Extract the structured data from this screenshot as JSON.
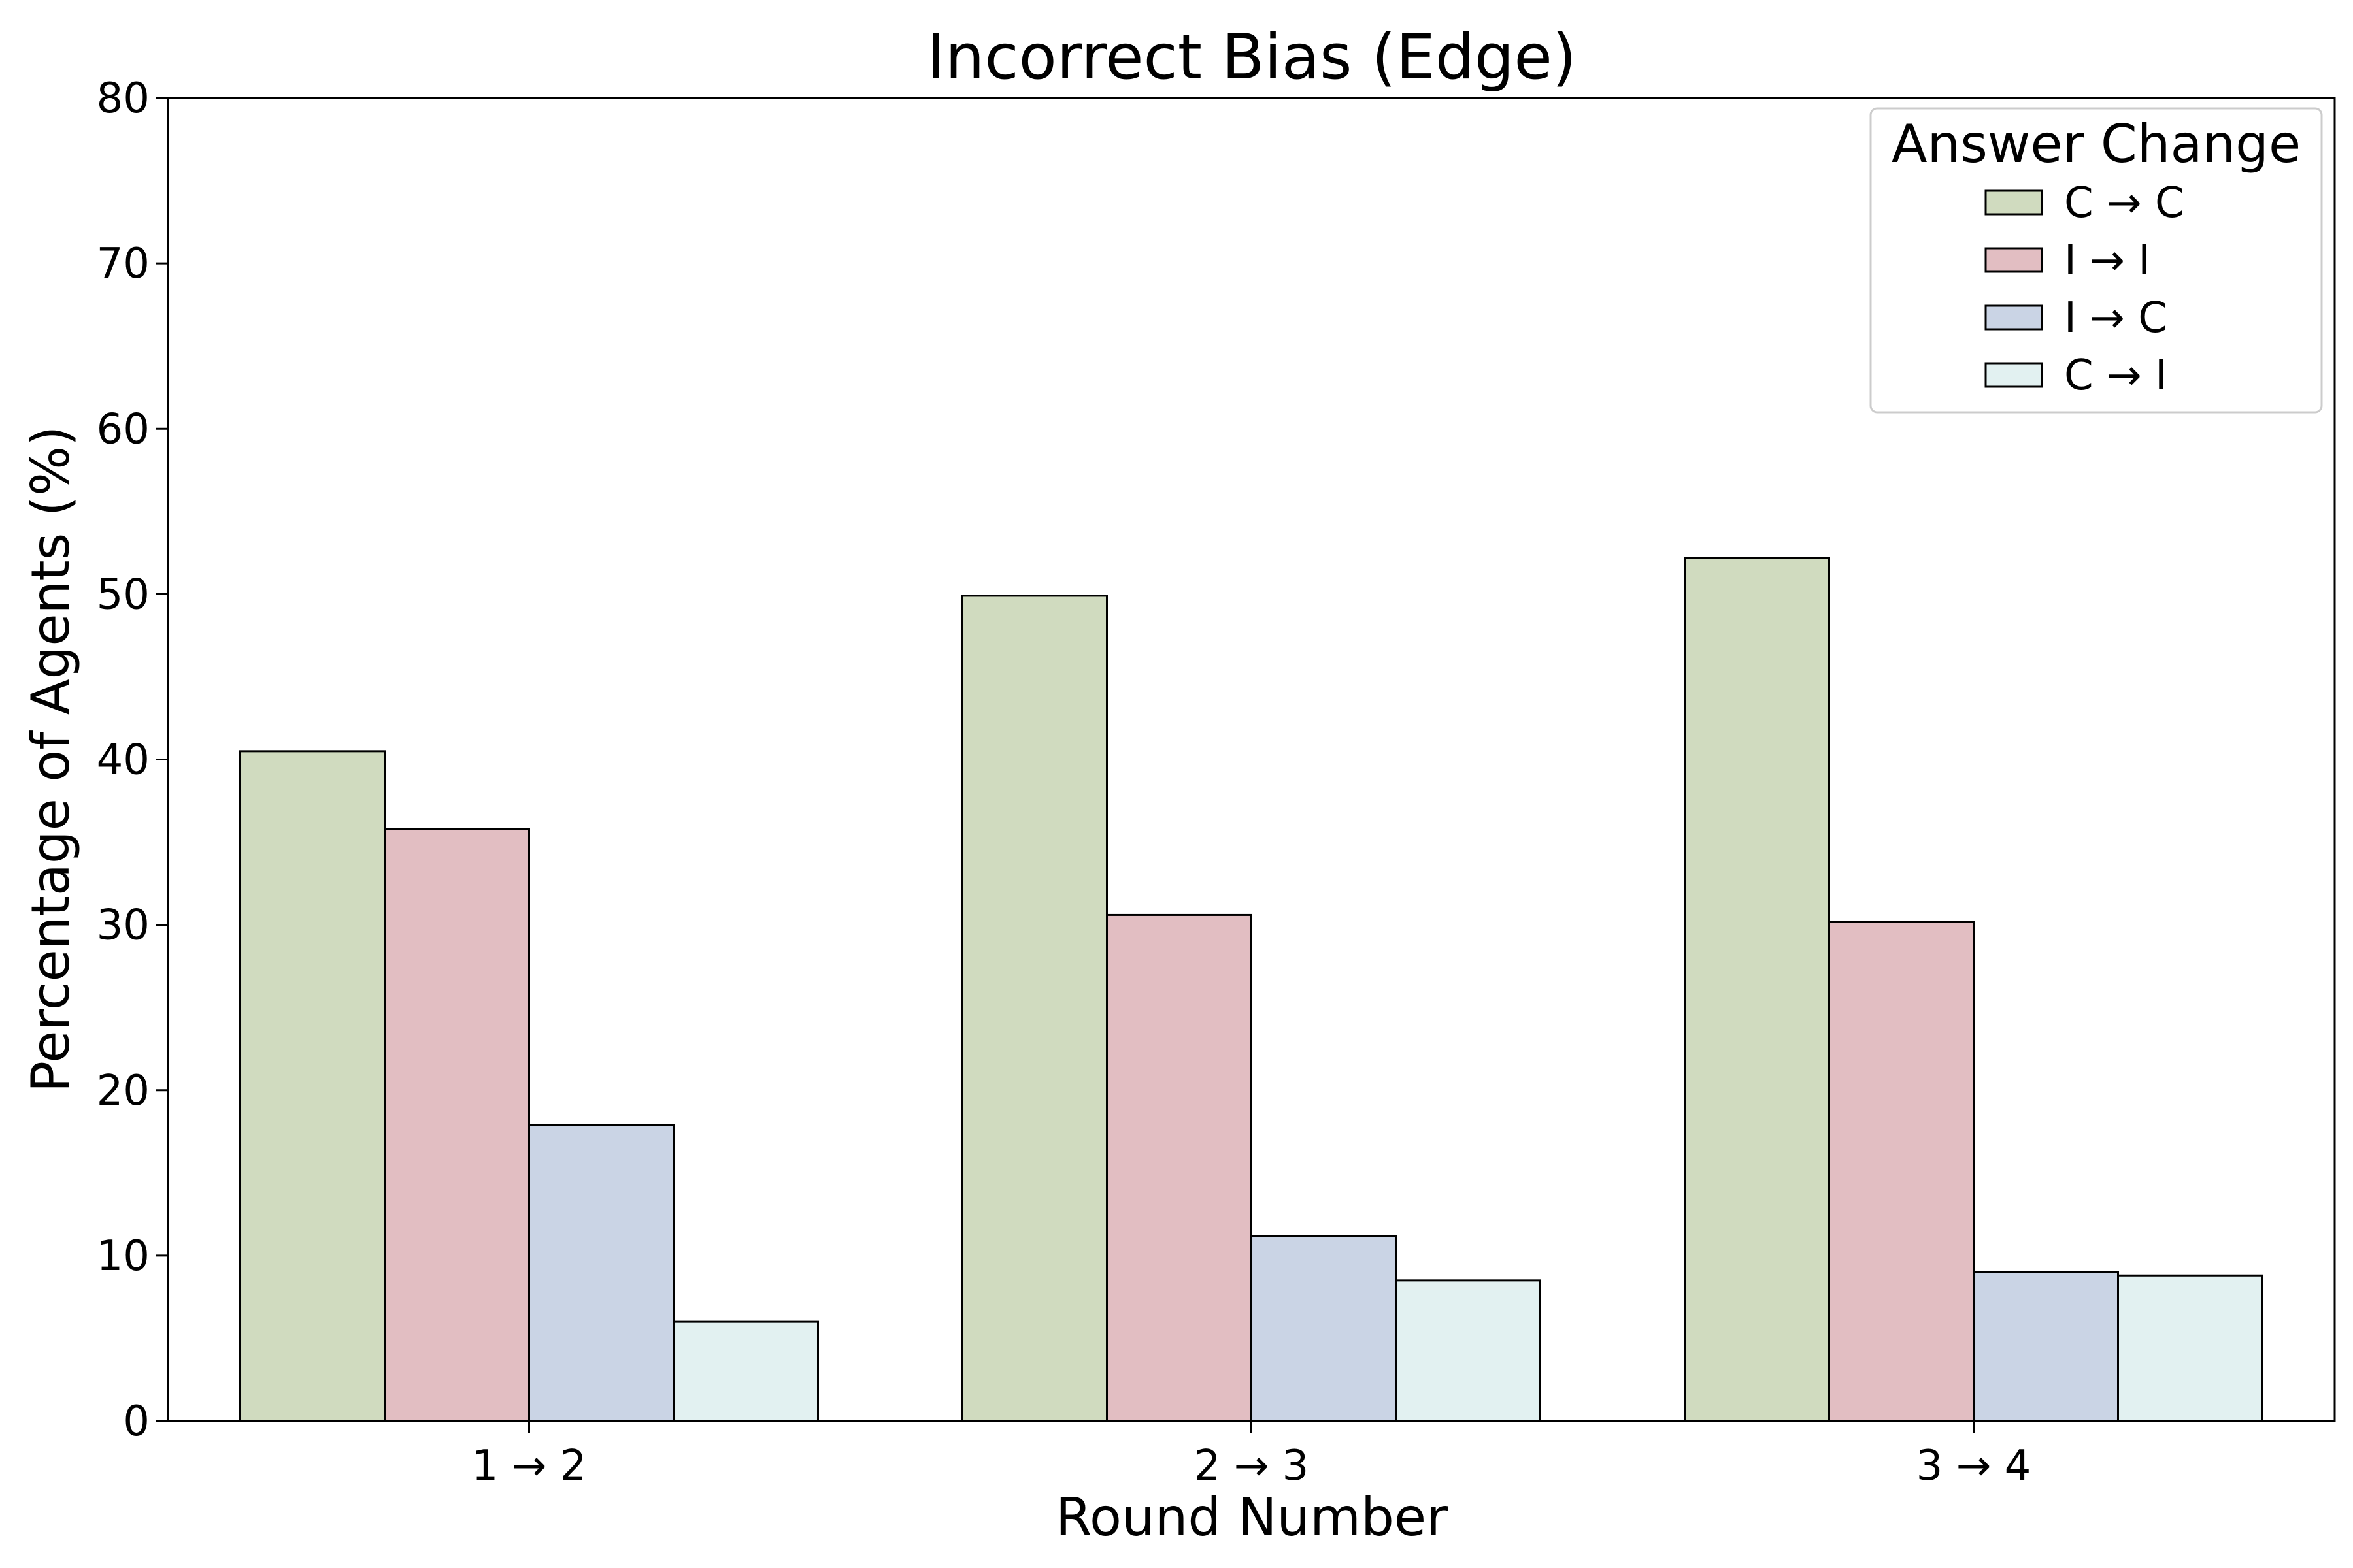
{
  "chart_data": {
    "type": "bar",
    "title": "Incorrect Bias (Edge)",
    "xlabel": "Round Number",
    "ylabel": "Percentage of Agents (%)",
    "categories": [
      "1 → 2",
      "2 → 3",
      "3 → 4"
    ],
    "ylim": [
      0,
      80
    ],
    "yticks": [
      0,
      10,
      20,
      30,
      40,
      50,
      60,
      70,
      80
    ],
    "grid": false,
    "legend": {
      "title": "Answer Change",
      "placement": "top-right"
    },
    "series": [
      {
        "name": "C → C",
        "color": "#d0dbbf",
        "values": [
          40.5,
          49.9,
          52.2
        ]
      },
      {
        "name": "I → I",
        "color": "#e2bec2",
        "values": [
          35.8,
          30.6,
          30.2
        ]
      },
      {
        "name": "I → C",
        "color": "#cad4e5",
        "values": [
          17.9,
          11.2,
          9.0
        ]
      },
      {
        "name": "C → I",
        "color": "#e2f1f1",
        "values": [
          6.0,
          8.5,
          8.8
        ]
      }
    ]
  }
}
